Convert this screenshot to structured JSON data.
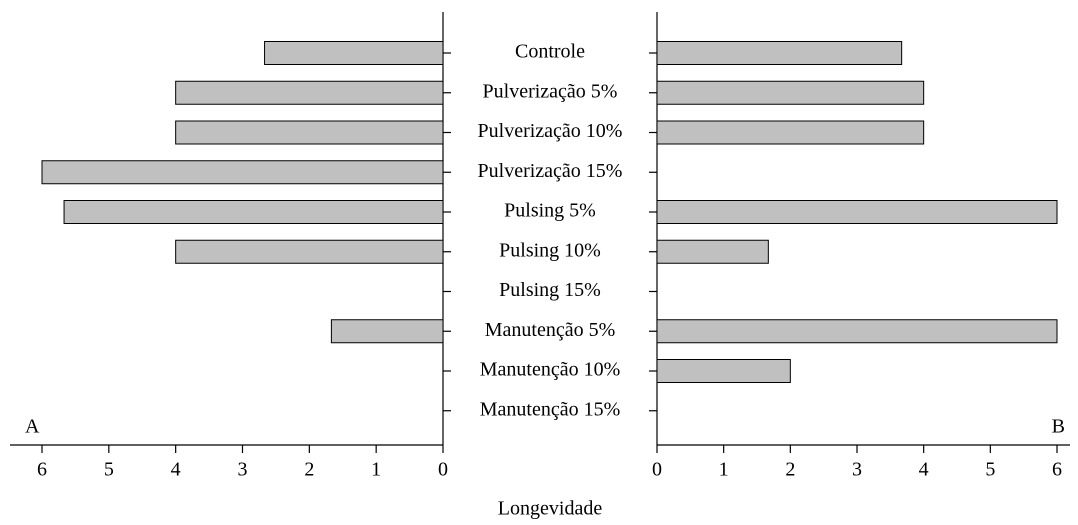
{
  "chart_data": {
    "type": "bar",
    "orientation": "horizontal",
    "color": "#c0c0c0",
    "xlabel": "Longevidade",
    "categories": [
      "Controle",
      "Pulverização 5%",
      "Pulverização 10%",
      "Pulverização 15%",
      "Pulsing 5%",
      "Pulsing 10%",
      "Pulsing 15%",
      "Manutenção 5%",
      "Manutenção 10%",
      "Manutenção 15%"
    ],
    "panels": [
      {
        "label": "A",
        "xlim": [
          6,
          0
        ],
        "xticks": [
          6,
          5,
          4,
          3,
          2,
          1,
          0
        ],
        "values": [
          2.67,
          4,
          4,
          6,
          5.67,
          4,
          0,
          1.67,
          0,
          0
        ]
      },
      {
        "label": "B",
        "xlim": [
          0,
          6
        ],
        "xticks": [
          0,
          1,
          2,
          3,
          4,
          5,
          6
        ],
        "values": [
          3.67,
          4,
          4,
          0,
          6,
          1.67,
          0,
          6,
          2,
          0
        ]
      }
    ]
  }
}
